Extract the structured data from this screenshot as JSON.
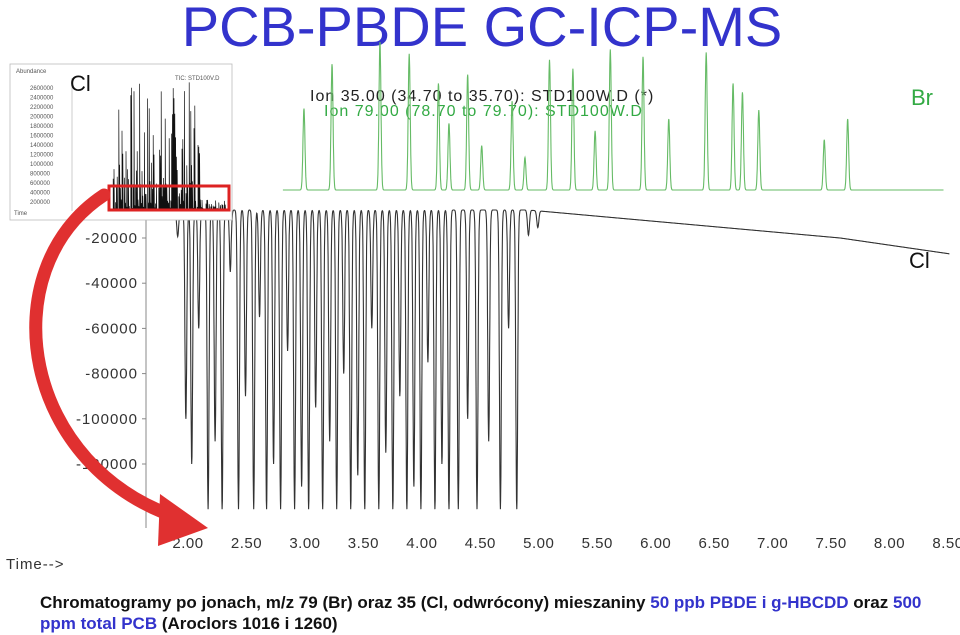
{
  "title": "PCB-PBDE GC-ICP-MS",
  "ion_lines": [
    "Ion  35.00 (34.70 to 35.70): STD100W.D (*)",
    "Ion  79.00 (78.70 to 79.70): STD100W.D"
  ],
  "labels": {
    "br": "Br",
    "cl_main": "Cl",
    "cl_inset": "Cl"
  },
  "inset": {
    "header_left": "Abundance",
    "header_right": "TIC: STD100V.D",
    "y_ticks": [
      "2600000",
      "2400000",
      "2200000",
      "2000000",
      "1800000",
      "1600000",
      "1400000",
      "1200000",
      "1000000",
      "800000",
      "600000",
      "400000",
      "200000"
    ],
    "time_label": "Time"
  },
  "caption": {
    "part1": "Chromatogramy po jonach, m/z 79 (Br) oraz 35 (Cl, odwrócony) mieszaniny ",
    "part2": "50 ppb PBDE i g-HBCDD",
    "part3": " oraz ",
    "part4": "500 ppm total PCB",
    "part5": " (Aroclors 1016 i 1260)"
  },
  "colors": {
    "title": "#3333cc",
    "br_trace": "#66bb66",
    "cl_trace": "#333333",
    "highlight_box": "#dd2222",
    "arrow": "#e03030"
  },
  "chart_data": {
    "type": "line",
    "x_label": "Time-->",
    "x_ticks": [
      "2.00",
      "2.50",
      "3.00",
      "3.50",
      "4.00",
      "4.50",
      "5.00",
      "5.50",
      "6.00",
      "6.50",
      "7.00",
      "7.50",
      "8.00",
      "8.50"
    ],
    "xlim": [
      1.85,
      8.85
    ],
    "y_ticks": [
      "-20000",
      "-40000",
      "-60000",
      "-80000",
      "-100000",
      "-120000"
    ],
    "y_tick_values": [
      -20000,
      -40000,
      -60000,
      -80000,
      -100000,
      -120000
    ],
    "series": [
      {
        "name": "Ion 79.00 (Br)",
        "peaks": [
          {
            "t": 3.18,
            "h": 0.55
          },
          {
            "t": 3.42,
            "h": 0.85
          },
          {
            "t": 3.83,
            "h": 1.0
          },
          {
            "t": 4.08,
            "h": 0.92
          },
          {
            "t": 4.33,
            "h": 0.72
          },
          {
            "t": 4.42,
            "h": 0.45
          },
          {
            "t": 4.58,
            "h": 0.78
          },
          {
            "t": 4.7,
            "h": 0.3
          },
          {
            "t": 4.96,
            "h": 0.6
          },
          {
            "t": 5.07,
            "h": 0.22
          },
          {
            "t": 5.28,
            "h": 0.88
          },
          {
            "t": 5.48,
            "h": 0.82
          },
          {
            "t": 5.67,
            "h": 0.4
          },
          {
            "t": 5.8,
            "h": 0.95
          },
          {
            "t": 6.08,
            "h": 0.9
          },
          {
            "t": 6.3,
            "h": 0.48
          },
          {
            "t": 6.62,
            "h": 0.93
          },
          {
            "t": 6.85,
            "h": 0.72
          },
          {
            "t": 6.93,
            "h": 0.66
          },
          {
            "t": 7.07,
            "h": 0.54
          },
          {
            "t": 7.63,
            "h": 0.34
          },
          {
            "t": 7.83,
            "h": 0.48
          }
        ]
      },
      {
        "name": "Ion 35.00 (Cl, inverted)",
        "peaks": [
          {
            "t": 2.1,
            "d": 19000
          },
          {
            "t": 2.17,
            "d": 100000
          },
          {
            "t": 2.22,
            "d": 120000
          },
          {
            "t": 2.28,
            "d": 60000
          },
          {
            "t": 2.36,
            "d": 140000
          },
          {
            "t": 2.42,
            "d": 110000
          },
          {
            "t": 2.48,
            "d": 140000
          },
          {
            "t": 2.55,
            "d": 35000
          },
          {
            "t": 2.62,
            "d": 140000
          },
          {
            "t": 2.68,
            "d": 90000
          },
          {
            "t": 2.75,
            "d": 140000
          },
          {
            "t": 2.8,
            "d": 55000
          },
          {
            "t": 2.86,
            "d": 140000
          },
          {
            "t": 2.92,
            "d": 120000
          },
          {
            "t": 2.98,
            "d": 140000
          },
          {
            "t": 3.04,
            "d": 70000
          },
          {
            "t": 3.1,
            "d": 140000
          },
          {
            "t": 3.16,
            "d": 130000
          },
          {
            "t": 3.22,
            "d": 140000
          },
          {
            "t": 3.28,
            "d": 95000
          },
          {
            "t": 3.34,
            "d": 140000
          },
          {
            "t": 3.4,
            "d": 110000
          },
          {
            "t": 3.46,
            "d": 140000
          },
          {
            "t": 3.52,
            "d": 80000
          },
          {
            "t": 3.58,
            "d": 140000
          },
          {
            "t": 3.64,
            "d": 125000
          },
          {
            "t": 3.7,
            "d": 140000
          },
          {
            "t": 3.76,
            "d": 60000
          },
          {
            "t": 3.82,
            "d": 140000
          },
          {
            "t": 3.88,
            "d": 115000
          },
          {
            "t": 3.94,
            "d": 140000
          },
          {
            "t": 4.0,
            "d": 90000
          },
          {
            "t": 4.06,
            "d": 140000
          },
          {
            "t": 4.12,
            "d": 130000
          },
          {
            "t": 4.18,
            "d": 140000
          },
          {
            "t": 4.24,
            "d": 75000
          },
          {
            "t": 4.3,
            "d": 140000
          },
          {
            "t": 4.36,
            "d": 120000
          },
          {
            "t": 4.42,
            "d": 140000
          },
          {
            "t": 4.5,
            "d": 140000
          },
          {
            "t": 4.58,
            "d": 100000
          },
          {
            "t": 4.66,
            "d": 140000
          },
          {
            "t": 4.76,
            "d": 110000
          },
          {
            "t": 4.86,
            "d": 140000
          },
          {
            "t": 4.93,
            "d": 60000
          },
          {
            "t": 5.0,
            "d": 140000
          },
          {
            "t": 5.1,
            "d": 18000
          },
          {
            "t": 5.18,
            "d": 12000
          }
        ]
      }
    ]
  }
}
